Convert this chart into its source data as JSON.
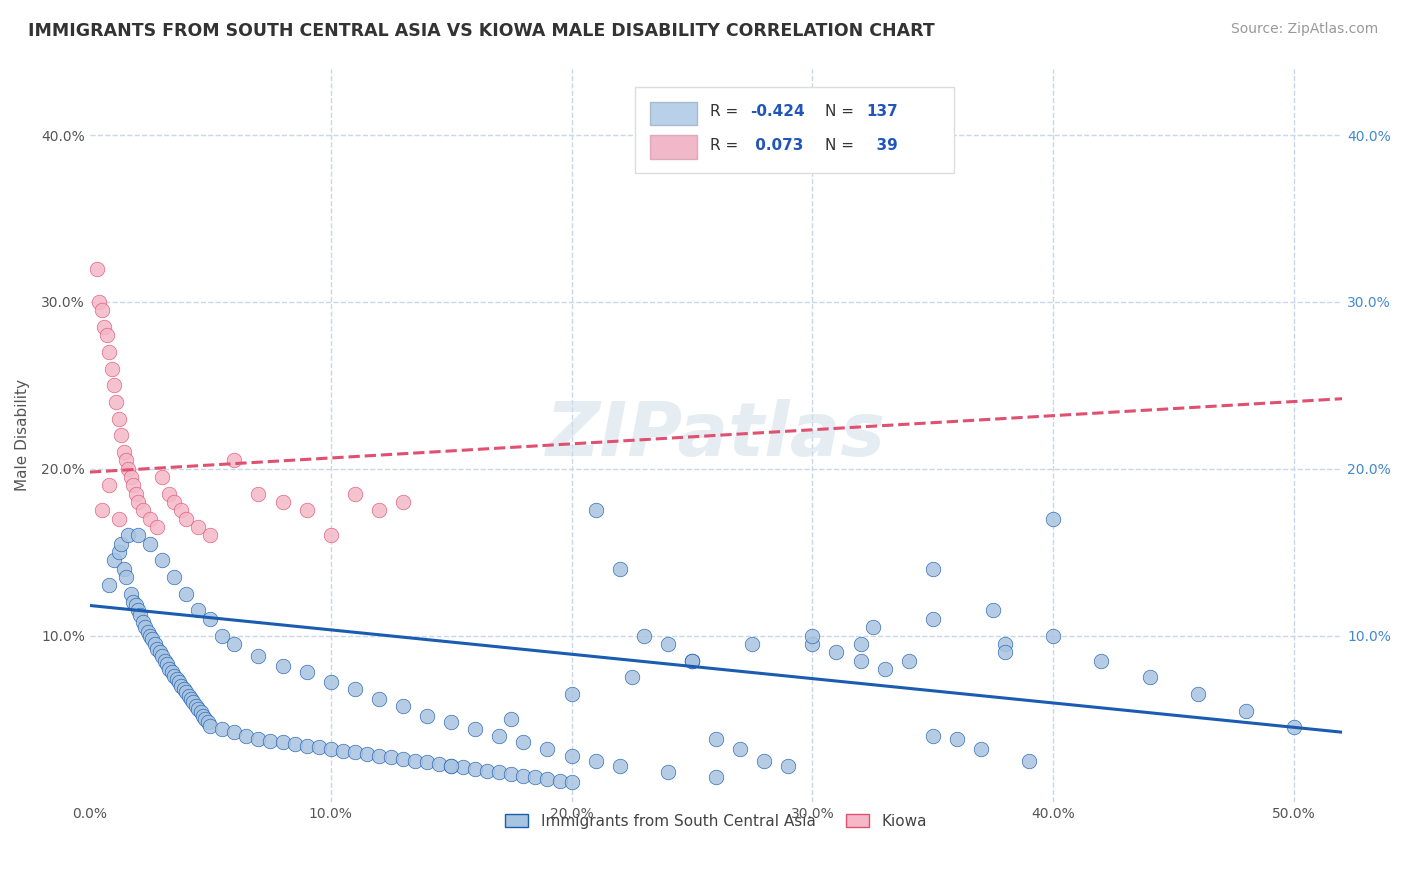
{
  "title": "IMMIGRANTS FROM SOUTH CENTRAL ASIA VS KIOWA MALE DISABILITY CORRELATION CHART",
  "source": "Source: ZipAtlas.com",
  "ylabel": "Male Disability",
  "y_ticks": [
    0.0,
    0.1,
    0.2,
    0.3,
    0.4
  ],
  "y_tick_labels_left": [
    "",
    "10.0%",
    "20.0%",
    "30.0%",
    "40.0%"
  ],
  "y_tick_labels_right": [
    "",
    "10.0%",
    "20.0%",
    "30.0%",
    "40.0%"
  ],
  "x_ticks": [
    0.0,
    0.1,
    0.2,
    0.3,
    0.4,
    0.5
  ],
  "x_tick_labels": [
    "0.0%",
    "10.0%",
    "20.0%",
    "30.0%",
    "40.0%",
    "50.0%"
  ],
  "xlim": [
    0.0,
    0.52
  ],
  "ylim": [
    0.0,
    0.44
  ],
  "watermark": "ZIPatlas",
  "scatter_blue_color": "#a8c4e0",
  "scatter_pink_color": "#f4b8c8",
  "line_blue_color": "#1a5cb0",
  "line_pink_color": "#e05070",
  "legend_box_blue": "#b8d0e8",
  "legend_box_pink": "#f0b8c8",
  "background_color": "#ffffff",
  "grid_color": "#c8d8e8",
  "blue_scatter_x": [
    0.008,
    0.01,
    0.012,
    0.013,
    0.014,
    0.015,
    0.016,
    0.017,
    0.018,
    0.019,
    0.02,
    0.021,
    0.022,
    0.023,
    0.024,
    0.025,
    0.026,
    0.027,
    0.028,
    0.029,
    0.03,
    0.031,
    0.032,
    0.033,
    0.034,
    0.035,
    0.036,
    0.037,
    0.038,
    0.039,
    0.04,
    0.041,
    0.042,
    0.043,
    0.044,
    0.045,
    0.046,
    0.047,
    0.048,
    0.049,
    0.05,
    0.055,
    0.06,
    0.065,
    0.07,
    0.075,
    0.08,
    0.085,
    0.09,
    0.095,
    0.1,
    0.105,
    0.11,
    0.115,
    0.12,
    0.125,
    0.13,
    0.135,
    0.14,
    0.145,
    0.15,
    0.155,
    0.16,
    0.165,
    0.17,
    0.175,
    0.18,
    0.185,
    0.19,
    0.195,
    0.2,
    0.21,
    0.22,
    0.23,
    0.24,
    0.25,
    0.26,
    0.27,
    0.28,
    0.29,
    0.3,
    0.31,
    0.32,
    0.33,
    0.34,
    0.35,
    0.36,
    0.37,
    0.38,
    0.39,
    0.4,
    0.21,
    0.25,
    0.32,
    0.35,
    0.38,
    0.15,
    0.175,
    0.2,
    0.225,
    0.25,
    0.275,
    0.3,
    0.325,
    0.35,
    0.375,
    0.4,
    0.42,
    0.44,
    0.46,
    0.48,
    0.5,
    0.02,
    0.025,
    0.03,
    0.035,
    0.04,
    0.045,
    0.05,
    0.055,
    0.06,
    0.07,
    0.08,
    0.09,
    0.1,
    0.11,
    0.12,
    0.13,
    0.14,
    0.15,
    0.16,
    0.17,
    0.18,
    0.19,
    0.2,
    0.22,
    0.24,
    0.26
  ],
  "blue_scatter_y": [
    0.13,
    0.145,
    0.15,
    0.155,
    0.14,
    0.135,
    0.16,
    0.125,
    0.12,
    0.118,
    0.115,
    0.112,
    0.108,
    0.105,
    0.102,
    0.1,
    0.098,
    0.095,
    0.092,
    0.09,
    0.088,
    0.085,
    0.083,
    0.08,
    0.078,
    0.076,
    0.074,
    0.072,
    0.07,
    0.068,
    0.066,
    0.064,
    0.062,
    0.06,
    0.058,
    0.056,
    0.054,
    0.052,
    0.05,
    0.048,
    0.046,
    0.044,
    0.042,
    0.04,
    0.038,
    0.037,
    0.036,
    0.035,
    0.034,
    0.033,
    0.032,
    0.031,
    0.03,
    0.029,
    0.028,
    0.027,
    0.026,
    0.025,
    0.024,
    0.023,
    0.022,
    0.021,
    0.02,
    0.019,
    0.018,
    0.017,
    0.016,
    0.015,
    0.014,
    0.013,
    0.012,
    0.175,
    0.14,
    0.1,
    0.095,
    0.085,
    0.038,
    0.032,
    0.025,
    0.022,
    0.095,
    0.09,
    0.085,
    0.08,
    0.085,
    0.14,
    0.038,
    0.032,
    0.095,
    0.025,
    0.17,
    0.025,
    0.085,
    0.095,
    0.04,
    0.09,
    0.022,
    0.05,
    0.065,
    0.075,
    0.085,
    0.095,
    0.1,
    0.105,
    0.11,
    0.115,
    0.1,
    0.085,
    0.075,
    0.065,
    0.055,
    0.045,
    0.16,
    0.155,
    0.145,
    0.135,
    0.125,
    0.115,
    0.11,
    0.1,
    0.095,
    0.088,
    0.082,
    0.078,
    0.072,
    0.068,
    0.062,
    0.058,
    0.052,
    0.048,
    0.044,
    0.04,
    0.036,
    0.032,
    0.028,
    0.022,
    0.018,
    0.015
  ],
  "pink_scatter_x": [
    0.003,
    0.004,
    0.005,
    0.006,
    0.007,
    0.008,
    0.009,
    0.01,
    0.011,
    0.012,
    0.013,
    0.014,
    0.015,
    0.016,
    0.017,
    0.018,
    0.019,
    0.02,
    0.022,
    0.025,
    0.028,
    0.03,
    0.033,
    0.035,
    0.038,
    0.04,
    0.045,
    0.05,
    0.06,
    0.07,
    0.08,
    0.09,
    0.1,
    0.11,
    0.12,
    0.13,
    0.005,
    0.008,
    0.012
  ],
  "pink_scatter_y": [
    0.32,
    0.3,
    0.295,
    0.285,
    0.28,
    0.27,
    0.26,
    0.25,
    0.24,
    0.23,
    0.22,
    0.21,
    0.205,
    0.2,
    0.195,
    0.19,
    0.185,
    0.18,
    0.175,
    0.17,
    0.165,
    0.195,
    0.185,
    0.18,
    0.175,
    0.17,
    0.165,
    0.16,
    0.205,
    0.185,
    0.18,
    0.175,
    0.16,
    0.185,
    0.175,
    0.18,
    0.175,
    0.19,
    0.17
  ],
  "blue_line_x": [
    0.0,
    0.52
  ],
  "blue_line_y": [
    0.118,
    0.042
  ],
  "pink_line_x": [
    0.0,
    0.52
  ],
  "pink_line_y": [
    0.198,
    0.242
  ],
  "legend_label1": "Immigrants from South Central Asia",
  "legend_label2": "Kiowa"
}
